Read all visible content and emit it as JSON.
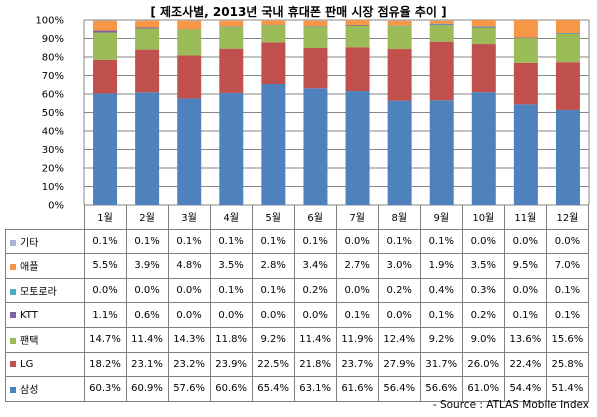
{
  "chart_data": {
    "type": "bar",
    "stacked": true,
    "title": "[ 제조사별, 2013년 국내 휴대폰 판매 시장 점유율 추이 ]",
    "categories": [
      "1월",
      "2월",
      "3월",
      "4월",
      "5월",
      "6월",
      "7월",
      "8월",
      "9월",
      "10월",
      "11월",
      "12월"
    ],
    "ylim": [
      0,
      100
    ],
    "y_ticks": [
      "0%",
      "10%",
      "20%",
      "30%",
      "40%",
      "50%",
      "60%",
      "70%",
      "80%",
      "90%",
      "100%"
    ],
    "grid": true,
    "series": [
      {
        "name": "삼성",
        "color": "#4f81bd",
        "values": [
          60.3,
          60.9,
          57.6,
          60.6,
          65.4,
          63.1,
          61.6,
          56.4,
          56.6,
          61.0,
          54.4,
          51.4
        ],
        "labels": [
          "60.3%",
          "60.9%",
          "57.6%",
          "60.6%",
          "65.4%",
          "63.1%",
          "61.6%",
          "56.4%",
          "56.6%",
          "61.0%",
          "54.4%",
          "51.4%"
        ]
      },
      {
        "name": "LG",
        "color": "#c0504d",
        "values": [
          18.2,
          23.1,
          23.2,
          23.9,
          22.5,
          21.8,
          23.7,
          27.9,
          31.7,
          26.0,
          22.4,
          25.8
        ],
        "labels": [
          "18.2%",
          "23.1%",
          "23.2%",
          "23.9%",
          "22.5%",
          "21.8%",
          "23.7%",
          "27.9%",
          "31.7%",
          "26.0%",
          "22.4%",
          "25.8%"
        ]
      },
      {
        "name": "팬택",
        "color": "#9bbb59",
        "values": [
          14.7,
          11.4,
          14.3,
          11.8,
          9.2,
          11.4,
          11.9,
          12.4,
          9.2,
          9.0,
          13.6,
          15.6
        ],
        "labels": [
          "14.7%",
          "11.4%",
          "14.3%",
          "11.8%",
          "9.2%",
          "11.4%",
          "11.9%",
          "12.4%",
          "9.2%",
          "9.0%",
          "13.6%",
          "15.6%"
        ]
      },
      {
        "name": "KTT",
        "color": "#8064a2",
        "values": [
          1.1,
          0.6,
          0.0,
          0.0,
          0.0,
          0.0,
          0.1,
          0.0,
          0.1,
          0.2,
          0.1,
          0.1
        ],
        "labels": [
          "1.1%",
          "0.6%",
          "0.0%",
          "0.0%",
          "0.0%",
          "0.0%",
          "0.1%",
          "0.0%",
          "0.1%",
          "0.2%",
          "0.1%",
          "0.1%"
        ]
      },
      {
        "name": "모토로라",
        "color": "#4bacc6",
        "values": [
          0.0,
          0.0,
          0.0,
          0.1,
          0.1,
          0.2,
          0.0,
          0.2,
          0.4,
          0.3,
          0.0,
          0.1
        ],
        "labels": [
          "0.0%",
          "0.0%",
          "0.0%",
          "0.1%",
          "0.1%",
          "0.2%",
          "0.0%",
          "0.2%",
          "0.4%",
          "0.3%",
          "0.0%",
          "0.1%"
        ]
      },
      {
        "name": "애플",
        "color": "#f79646",
        "values": [
          5.5,
          3.9,
          4.8,
          3.5,
          2.8,
          3.4,
          2.7,
          3.0,
          1.9,
          3.5,
          9.5,
          7.0
        ],
        "labels": [
          "5.5%",
          "3.9%",
          "4.8%",
          "3.5%",
          "2.8%",
          "3.4%",
          "2.7%",
          "3.0%",
          "1.9%",
          "3.5%",
          "9.5%",
          "7.0%"
        ]
      },
      {
        "name": "기타",
        "color": "#a5b5cf",
        "values": [
          0.1,
          0.1,
          0.1,
          0.1,
          0.1,
          0.1,
          0.0,
          0.1,
          0.1,
          0.0,
          0.0,
          0.0
        ],
        "labels": [
          "0.1%",
          "0.1%",
          "0.1%",
          "0.1%",
          "0.1%",
          "0.1%",
          "0.0%",
          "0.1%",
          "0.1%",
          "0.0%",
          "0.0%",
          "0.0%"
        ]
      }
    ],
    "table_row_order": [
      "기타",
      "애플",
      "모토로라",
      "KTT",
      "팬택",
      "LG",
      "삼성"
    ]
  },
  "source": "- Source : ATLAS Mobile Index"
}
